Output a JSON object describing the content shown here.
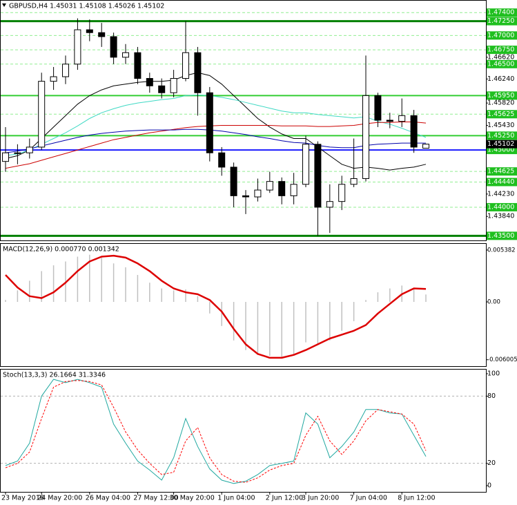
{
  "chart_data": [
    {
      "type": "candlestick",
      "title": "GBPUSD,H4  1.45031 1.45108 1.45026 1.45102",
      "categories": [
        "23 May 2016",
        null,
        null,
        "24 May 20:00",
        null,
        null,
        null,
        "26 May 04:00",
        null,
        null,
        null,
        "27 May 12:00",
        null,
        null,
        "30 May 20:00",
        null,
        null,
        null,
        "1 Jun 04:00",
        null,
        null,
        null,
        "2 Jun 12:00",
        null,
        null,
        "3 Jun 20:00",
        null,
        null,
        null,
        "7 Jun 04:00",
        null,
        null,
        null,
        "8 Jun 12:00",
        null,
        null
      ],
      "open": [
        1.448,
        1.4495,
        1.4495,
        1.4505,
        1.462,
        1.4628,
        1.465,
        1.471,
        1.4705,
        1.4698,
        1.4662,
        1.467,
        1.4625,
        1.4612,
        1.46,
        1.4625,
        1.467,
        1.46,
        1.4495,
        1.447,
        1.442,
        1.4418,
        1.443,
        1.4445,
        1.442,
        1.444,
        1.451,
        1.44,
        1.441,
        1.444,
        1.445,
        1.4595,
        1.4552,
        1.455,
        1.456,
        1.45031
      ],
      "high": [
        1.454,
        1.451,
        1.452,
        1.4635,
        1.4645,
        1.4665,
        1.473,
        1.4728,
        1.4722,
        1.4705,
        1.4685,
        1.468,
        1.4635,
        1.4625,
        1.464,
        1.4725,
        1.468,
        1.461,
        1.4505,
        1.4478,
        1.443,
        1.445,
        1.4462,
        1.4452,
        1.446,
        1.4525,
        1.4515,
        1.444,
        1.4455,
        1.452,
        1.4665,
        1.46,
        1.4565,
        1.459,
        1.457,
        1.45108
      ],
      "low": [
        1.4462,
        1.4475,
        1.4485,
        1.45,
        1.4605,
        1.4615,
        1.464,
        1.469,
        1.468,
        1.465,
        1.465,
        1.4615,
        1.46,
        1.459,
        1.4592,
        1.462,
        1.456,
        1.448,
        1.4455,
        1.44,
        1.4388,
        1.441,
        1.4425,
        1.4405,
        1.4405,
        1.4435,
        1.435,
        1.4355,
        1.4395,
        1.4435,
        1.4445,
        1.454,
        1.4538,
        1.454,
        1.4495,
        1.45026
      ],
      "close": [
        1.4495,
        1.4495,
        1.4505,
        1.462,
        1.4628,
        1.465,
        1.471,
        1.4705,
        1.4698,
        1.4662,
        1.467,
        1.4625,
        1.4612,
        1.46,
        1.4625,
        1.467,
        1.46,
        1.4495,
        1.447,
        1.442,
        1.4418,
        1.443,
        1.4445,
        1.442,
        1.444,
        1.451,
        1.44,
        1.441,
        1.444,
        1.445,
        1.4595,
        1.4552,
        1.455,
        1.456,
        1.4505,
        1.45102
      ],
      "up_color": "#ffffff",
      "down_color": "#000000",
      "series": [
        {
          "color": "#000000",
          "values": [
            1.4485,
            1.449,
            1.45,
            1.452,
            1.454,
            1.456,
            1.458,
            1.4595,
            1.4605,
            1.4612,
            1.4615,
            1.4618,
            1.462,
            1.462,
            1.4622,
            1.463,
            1.4635,
            1.463,
            1.4615,
            1.4595,
            1.4575,
            1.4555,
            1.454,
            1.4528,
            1.452,
            1.452,
            1.4505,
            1.449,
            1.4475,
            1.4468,
            1.447,
            1.4468,
            1.4465,
            1.4468,
            1.447,
            1.4475
          ]
        },
        {
          "color": "#3ed9c4",
          "values": [
            1.449,
            1.4493,
            1.45,
            1.451,
            1.452,
            1.453,
            1.4542,
            1.4555,
            1.4565,
            1.4572,
            1.4578,
            1.4582,
            1.4585,
            1.4588,
            1.459,
            1.4595,
            1.4596,
            1.4595,
            1.4592,
            1.4588,
            1.4583,
            1.4578,
            1.4573,
            1.4568,
            1.4565,
            1.4565,
            1.4562,
            1.456,
            1.4558,
            1.4556,
            1.4558,
            1.455,
            1.4545,
            1.4538,
            1.453,
            1.4522
          ]
        },
        {
          "color": "#cc0000",
          "values": [
            1.4468,
            1.4472,
            1.4476,
            1.4482,
            1.4488,
            1.4494,
            1.45,
            1.4506,
            1.4512,
            1.4518,
            1.4522,
            1.4526,
            1.453,
            1.4533,
            1.4536,
            1.4539,
            1.4541,
            1.4542,
            1.4543,
            1.4543,
            1.4543,
            1.4543,
            1.4543,
            1.4542,
            1.4542,
            1.4542,
            1.4541,
            1.4541,
            1.4542,
            1.4543,
            1.4546,
            1.4548,
            1.4548,
            1.4549,
            1.4549,
            1.4547
          ]
        },
        {
          "color": "#0000aa",
          "values": [
            1.4495,
            1.4498,
            1.4502,
            1.4507,
            1.4512,
            1.4517,
            1.4522,
            1.4526,
            1.4529,
            1.4531,
            1.4533,
            1.4534,
            1.4535,
            1.4535,
            1.4535,
            1.4536,
            1.4536,
            1.4535,
            1.4533,
            1.453,
            1.4527,
            1.4523,
            1.452,
            1.4516,
            1.4513,
            1.4512,
            1.4508,
            1.4505,
            1.4504,
            1.4504,
            1.4508,
            1.451,
            1.4511,
            1.4512,
            1.4512,
            1.4512
          ]
        }
      ],
      "levels": [
        {
          "value": 1.474,
          "label": "1.47400",
          "color": "#90ee90",
          "dashed": true
        },
        {
          "value": 1.4725,
          "label": "1.47250",
          "color": "#008000",
          "dashed": false
        },
        {
          "value": 1.47,
          "label": "1.47000",
          "color": "#90ee90",
          "dashed": true
        },
        {
          "value": 1.4675,
          "label": "1.46750",
          "color": "#90ee90",
          "dashed": true
        },
        {
          "value": 1.465,
          "label": "1.46500",
          "color": "#90ee90",
          "dashed": true
        },
        {
          "value": 1.4595,
          "label": "1.45950",
          "color": "#32cd32",
          "dashed": false
        },
        {
          "value": 1.45625,
          "label": "1.45625",
          "color": "#90ee90",
          "dashed": true
        },
        {
          "value": 1.4525,
          "label": "1.45250",
          "color": "#32cd32",
          "dashed": false
        },
        {
          "value": 1.45,
          "label": "1.45000",
          "color": "#1a1aff",
          "dashed": false
        },
        {
          "value": 1.44625,
          "label": "1.44625",
          "color": "#90ee90",
          "dashed": true
        },
        {
          "value": 1.4444,
          "label": "1.44440",
          "color": "#90ee90",
          "dashed": true
        },
        {
          "value": 1.44,
          "label": "1.44000",
          "color": "#90ee90",
          "dashed": true
        },
        {
          "value": 1.435,
          "label": "1.43500",
          "color": "#008000",
          "dashed": false
        }
      ],
      "ylim": [
        1.4342,
        1.4762
      ],
      "yticks": [
        {
          "value": 1.4662,
          "label": "1.46620"
        },
        {
          "value": 1.4624,
          "label": "1.46240"
        },
        {
          "value": 1.4582,
          "label": "1.45820"
        },
        {
          "value": 1.4543,
          "label": "1.45430"
        },
        {
          "value": 1.4423,
          "label": "1.44230"
        },
        {
          "value": 1.4384,
          "label": "1.43840"
        }
      ]
    },
    {
      "type": "macd",
      "title": "MACD(12,26,9) 0.000770 0.001342",
      "color": "#c0c0c0",
      "values": [
        0.0002,
        0.0012,
        0.0022,
        0.0032,
        0.0038,
        0.0042,
        0.0047,
        0.0049,
        0.0046,
        0.004,
        0.0036,
        0.0028,
        0.002,
        0.0014,
        0.0012,
        0.0013,
        0.0006,
        -0.0012,
        -0.0025,
        -0.004,
        -0.005,
        -0.0055,
        -0.0056,
        -0.0057,
        -0.0055,
        -0.0042,
        -0.0045,
        -0.004,
        -0.003,
        -0.002,
        0.0002,
        0.001,
        0.0014,
        0.0017,
        0.0014,
        0.00077
      ],
      "series": [
        {
          "color": "#dd0000",
          "values": [
            0.0028,
            0.0015,
            0.0006,
            0.0004,
            0.001,
            0.002,
            0.0032,
            0.0042,
            0.0047,
            0.0048,
            0.0046,
            0.004,
            0.0032,
            0.0022,
            0.0014,
            0.001,
            0.0008,
            0.0002,
            -0.001,
            -0.0028,
            -0.0044,
            -0.0054,
            -0.0058,
            -0.0058,
            -0.0055,
            -0.005,
            -0.0044,
            -0.0038,
            -0.0034,
            -0.003,
            -0.0024,
            -0.0012,
            -0.0002,
            0.0008,
            0.0014,
            0.001342
          ]
        }
      ],
      "ylim": [
        -0.00667,
        0.0061
      ],
      "yticks": [
        0.005382,
        {
          "value": 0,
          "label": "0.00"
        },
        -0.006005
      ]
    },
    {
      "type": "stochastic",
      "title": "Stoch(13,3,3) 26.1664 31.3346",
      "series": [
        {
          "color": "#20a8a0",
          "dashed": false,
          "values": [
            18,
            22,
            38,
            80,
            95,
            92,
            95,
            92,
            88,
            55,
            38,
            22,
            14,
            5,
            25,
            60,
            35,
            15,
            5,
            2,
            4,
            10,
            18,
            20,
            22,
            65,
            55,
            25,
            35,
            48,
            68,
            68,
            65,
            64,
            45,
            26.1664
          ]
        },
        {
          "color": "#ff0000",
          "dashed": true,
          "values": [
            16,
            20,
            30,
            60,
            88,
            93,
            94,
            93,
            90,
            70,
            48,
            32,
            20,
            10,
            12,
            40,
            52,
            25,
            10,
            4,
            3,
            7,
            14,
            18,
            20,
            45,
            62,
            40,
            28,
            40,
            58,
            68,
            66,
            64,
            55,
            31.3346
          ]
        }
      ],
      "levels": [
        20,
        80
      ],
      "ylim": [
        -5.5,
        104.3
      ],
      "yticks": [
        0,
        20,
        80,
        100
      ]
    }
  ]
}
